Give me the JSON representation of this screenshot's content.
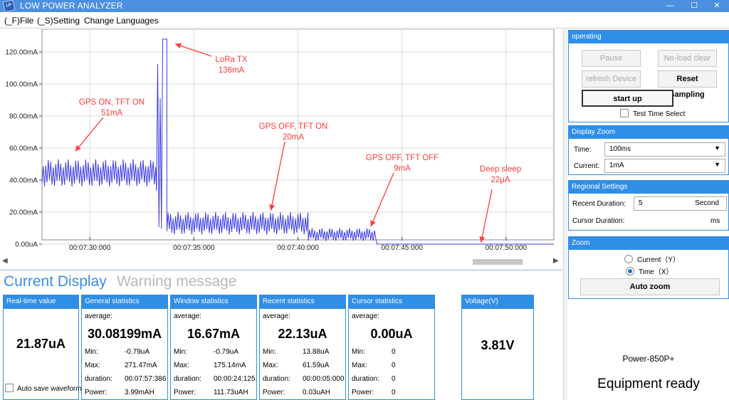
{
  "window": {
    "title": "LOW POWER ANALYZER",
    "icon": "app-logo-icon"
  },
  "menu": {
    "file": "(_F)File",
    "setting": "(_S)Setting",
    "languages": "Change Languages"
  },
  "chart_data": {
    "type": "line",
    "title": "",
    "xlabel": "",
    "ylabel": "",
    "y_ticks": [
      "0.00uA",
      "20.00mA",
      "40.00mA",
      "60.00mA",
      "80.00mA",
      "100.00mA",
      "120.00mA"
    ],
    "ylim": [
      0,
      128
    ],
    "x_ticks": [
      "00:07:30:000",
      "00:07:35:000",
      "00:07:40:000",
      "00:07:45:000",
      "00:07:50:000"
    ],
    "xlim_seconds": [
      447.7,
      472.3
    ],
    "grid": true,
    "series": [
      {
        "color": "#3a3ae8",
        "segments": [
          {
            "from_s": 447.7,
            "to_s": 453.2,
            "low_mA": 36,
            "high_mA": 53
          },
          {
            "from_s": 453.2,
            "to_s": 453.5,
            "low_mA": 5,
            "high_mA": 128
          },
          {
            "from_s": 453.5,
            "to_s": 453.7,
            "low_mA": 128,
            "high_mA": 128
          },
          {
            "from_s": 453.7,
            "to_s": 460.5,
            "low_mA": 6,
            "high_mA": 20
          },
          {
            "from_s": 460.5,
            "to_s": 463.8,
            "low_mA": 2,
            "high_mA": 10
          },
          {
            "from_s": 463.8,
            "to_s": 472.3,
            "low_mA": 0.022,
            "high_mA": 0.022
          }
        ]
      }
    ],
    "annotations": [
      {
        "text": [
          "GPS ON, TFT ON",
          "51mA"
        ],
        "target_s": 449.3,
        "target_mA": 58
      },
      {
        "text": [
          "LoRa TX",
          "136mA"
        ],
        "target_s": 454.1,
        "target_mA": 125
      },
      {
        "text": [
          "GPS OFF, TFT ON",
          "20mA"
        ],
        "target_s": 458.7,
        "target_mA": 21
      },
      {
        "text": [
          "GPS OFF, TFT OFF",
          "9mA"
        ],
        "target_s": 463.5,
        "target_mA": 11
      },
      {
        "text": [
          "Deep sleep",
          "22μA"
        ],
        "target_s": 468.8,
        "target_mA": 1
      }
    ],
    "annotation_color": "#ff3b3b"
  },
  "tabs": {
    "current": "Current Display",
    "warning": "Warning message"
  },
  "panels": {
    "realtime": {
      "title": "Real-time value",
      "value": "21.87uA",
      "autosave": "Auto save waveform"
    },
    "general": {
      "title": "General statistics",
      "avg_label": "average:",
      "avg": "30.08199mA",
      "min": "-0.79uA",
      "max": "271.47mA",
      "duration": "00:07:57:386",
      "power": "3.99mAH"
    },
    "window": {
      "title": "Window statistics",
      "avg_label": "average:",
      "avg": "16.67mA",
      "min": "-0.79uA",
      "max": "175.14mA",
      "duration": "00:00:24:125",
      "power": "111.73uAH"
    },
    "recent": {
      "title": "Recent statistics",
      "avg_label": "average:",
      "avg": "22.13uA",
      "min": "13.88uA",
      "max": "61.59uA",
      "duration": "00:00:05:000",
      "power": "0.03uAH"
    },
    "cursor": {
      "title": "Cursor statistics",
      "avg_label": "average:",
      "avg": "0.00uA",
      "min": "0",
      "max": "0",
      "duration": "0",
      "power": "0"
    },
    "voltage": {
      "title": "Voltage(V)",
      "value": "3.81V"
    },
    "labels": {
      "min": "Min:",
      "max": "Max:",
      "duration": "duration:",
      "power": "Power:"
    }
  },
  "operating": {
    "title": "operating",
    "pause": "Pause",
    "noload": "No-load clear",
    "refresh": "refresh Device",
    "reset": "Reset sampling",
    "start": "start up",
    "test_time": "Test Time Select"
  },
  "display_zoom": {
    "title": "Display Zoom",
    "time_label": "Time:",
    "time_value": "100ms",
    "current_label": "Current:",
    "current_value": "1mA"
  },
  "regional": {
    "title": "Regional Settings",
    "recent_label": "Recent Duration:",
    "recent_value": "5",
    "recent_unit": "Second",
    "cursor_label": "Cursor Duration:",
    "cursor_unit": "ms"
  },
  "zoom": {
    "title": "Zoom",
    "current_option": "Current（Y）",
    "time_option": "Time（X）",
    "selected": "time",
    "auto": "Auto zoom"
  },
  "device": {
    "model": "Power-850P+",
    "status": "Equipment ready"
  }
}
